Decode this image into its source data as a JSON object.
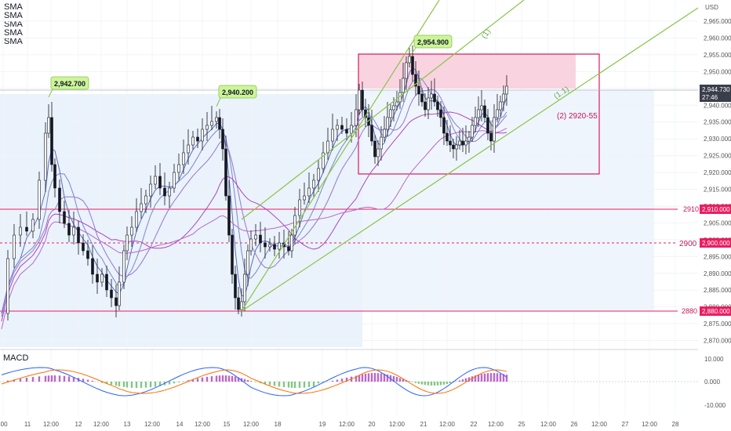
{
  "indicators": [
    "SMA",
    "SMA",
    "SMA",
    "SMA",
    "SMA"
  ],
  "macd_label": "MACD",
  "currency": "USD",
  "price_axis": {
    "ticks": [
      "2,965.000",
      "2,960.000",
      "2,955.000",
      "2,950.000",
      "2,945.000",
      "2,940.000",
      "2,935.000",
      "2,930.000",
      "2,925.000",
      "2,920.000",
      "2,915.000",
      "2,910.000",
      "2,905.000",
      "2,900.000",
      "2,895.000",
      "2,890.000",
      "2,885.000",
      "2,880.000",
      "2,875.000",
      "2,870.000"
    ],
    "current_price": "2,944.730",
    "countdown": "27:46",
    "level_2910": "2,910.000",
    "level_2900": "2,900.000",
    "level_2880": "2,880.000"
  },
  "macd_axis": [
    "10.000",
    "0.000",
    "-10.000"
  ],
  "time_axis": [
    ":00",
    "11",
    "12:00",
    "12",
    "12:00",
    "13",
    "12:00",
    "14",
    "12:00",
    "15",
    "12:00",
    "18",
    "19",
    "12:00",
    "20",
    "12:00",
    "21",
    "12:00",
    "22",
    "12:00",
    "25",
    "12:00",
    "26",
    "12:00",
    "27",
    "12:00",
    "28"
  ],
  "annotations": {
    "high1": "2,942.700",
    "high2": "2,940.200",
    "high3": "2,954.900",
    "channel1": "(1)",
    "channel2": "(1.1)",
    "target_zone": "(2) 2920-55",
    "level_2910": "2910",
    "level_2900": "2900",
    "level_2880": "2880"
  },
  "colors": {
    "up": "#131722",
    "down": "#131722",
    "level": "#e91e63",
    "box": "#d81b60",
    "box_fill": "#f8bbd0",
    "range_fill": "#e3edfa",
    "trend": "#8bc34a",
    "label_bg": "#ccf59a",
    "ma_blue": "#3f51b5",
    "ma_purple": "#9c27b0",
    "macd_line": "#2962ff",
    "signal_line": "#ff6d00",
    "hist_pos": "#9c27b0",
    "hist_neg": "#4caf50"
  }
}
